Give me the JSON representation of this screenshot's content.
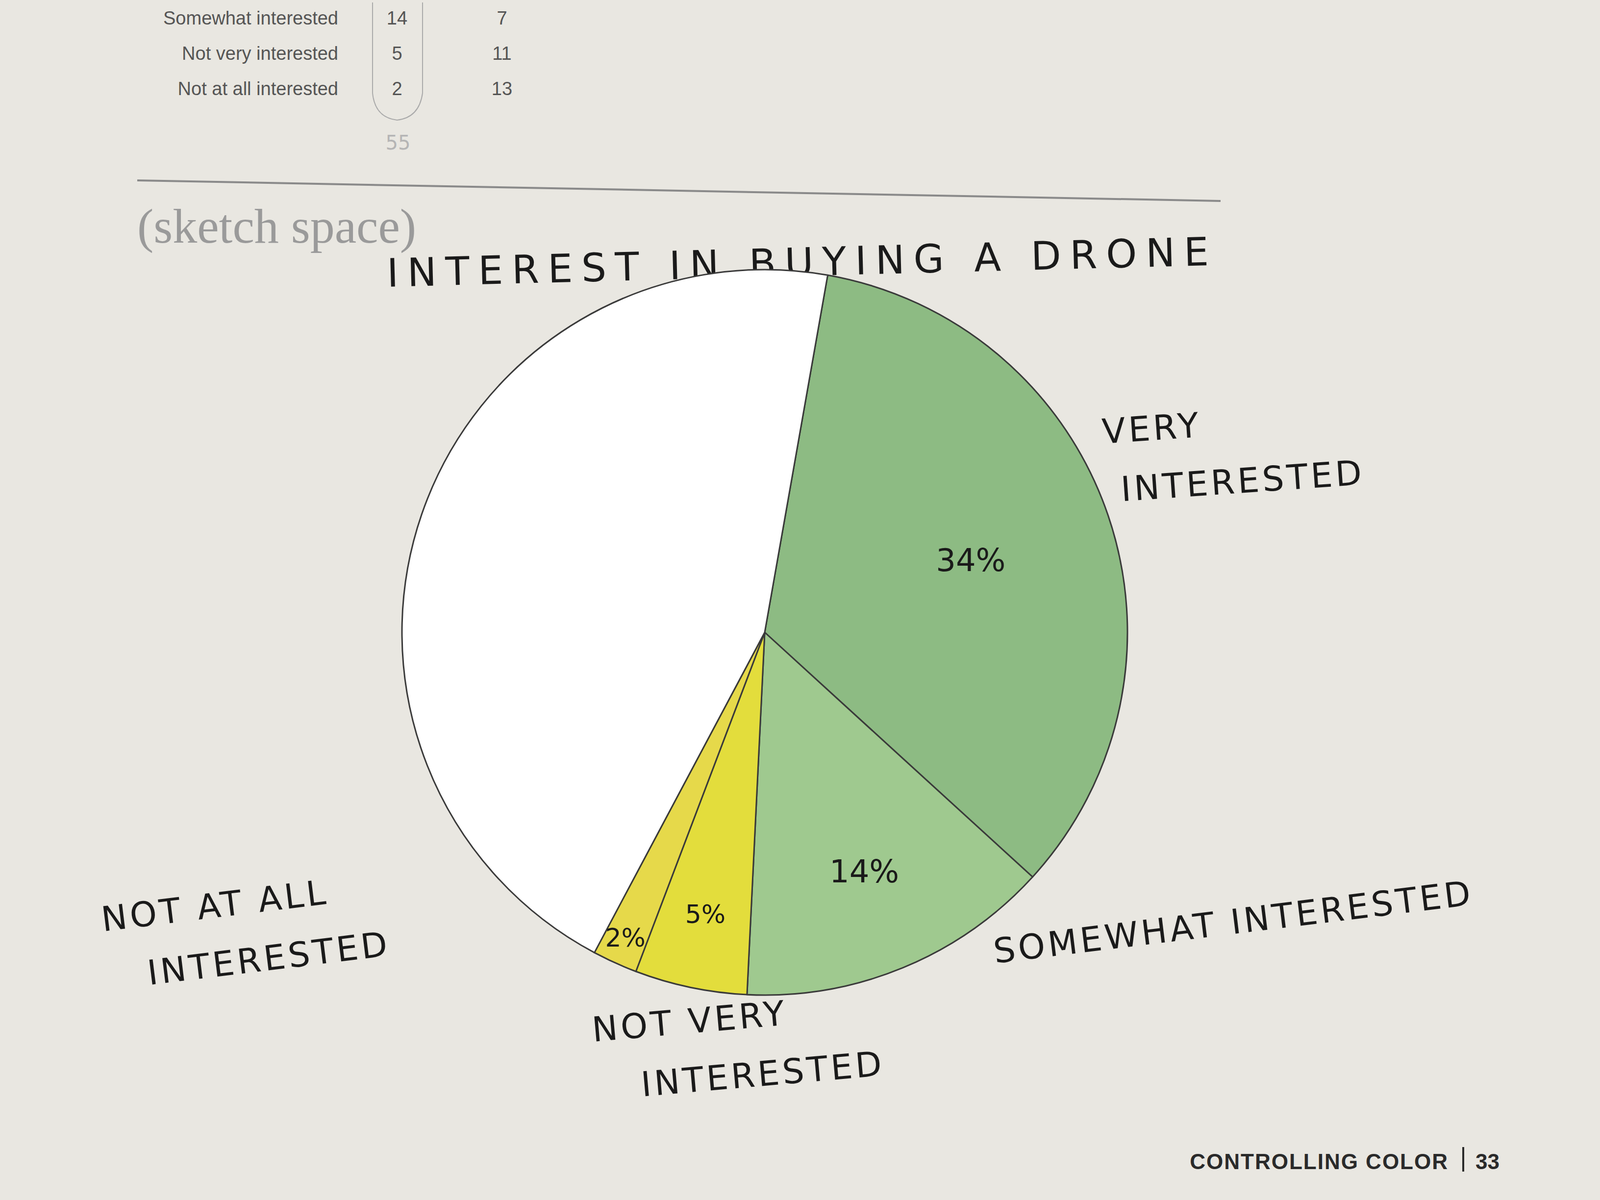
{
  "chart_data": {
    "type": "pie",
    "title": "INTEREST IN BUYING A DRONE",
    "categories": [
      "VERY INTERESTED",
      "SOMEWHAT INTERESTED",
      "NOT VERY INTERESTED",
      "NOT AT ALL INTERESTED",
      null
    ],
    "values": [
      34,
      14,
      5,
      2,
      45
    ],
    "value_labels": [
      "34%",
      "14%",
      "5%",
      "2%",
      null
    ],
    "colors": [
      "#8dbb83",
      "#9fc98f",
      "#e3dd3c",
      "#e6d94a",
      "#ffffff"
    ],
    "data_labels": true
  },
  "page": {
    "table": {
      "rows": [
        [
          "Somewhat interested",
          14,
          7
        ],
        [
          "Not very interested",
          5,
          11
        ],
        [
          "Not at all interested",
          2,
          13
        ]
      ]
    },
    "handwritten_note": 55,
    "section_label": "(sketch space)",
    "footer": {
      "section": "CONTROLLING COLOR",
      "page": 33
    }
  }
}
